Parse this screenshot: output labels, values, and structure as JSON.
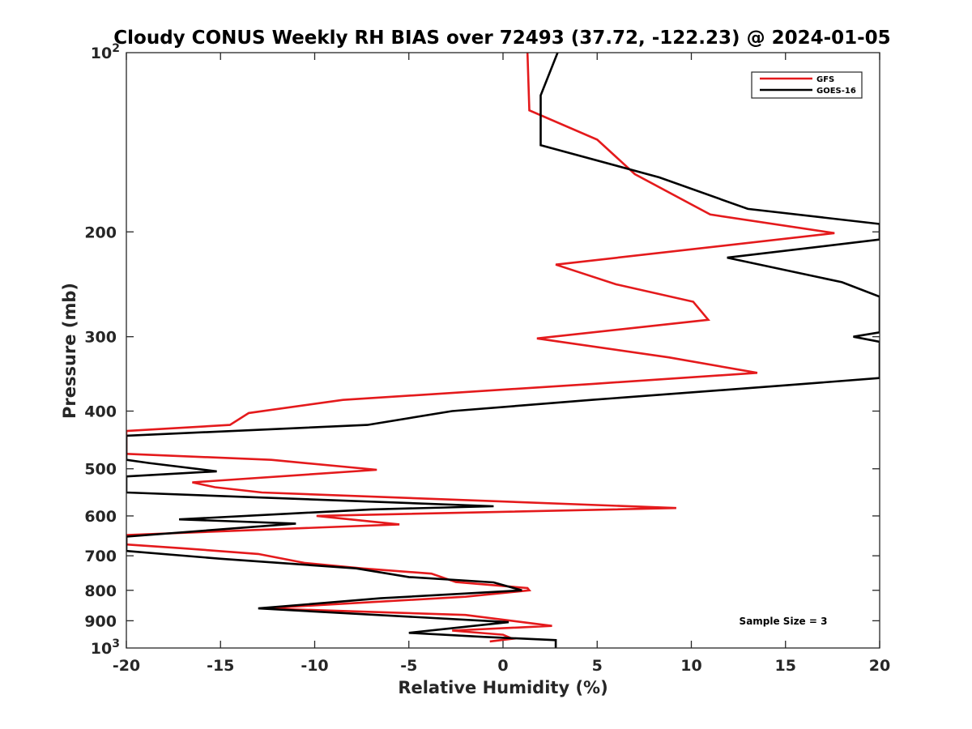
{
  "chart_data": {
    "type": "line",
    "title": "Cloudy CONUS Weekly RH BIAS over 72493 (37.72, -122.23) @ 2024-01-05",
    "xlabel": "Relative Humidity (%)",
    "ylabel": "Pressure (mb)",
    "xlim": [
      -20,
      20
    ],
    "ylim": [
      100,
      1000
    ],
    "y_scale": "log",
    "y_reversed": true,
    "grid": false,
    "legend_position": "top-right",
    "x_ticks": [
      "-20",
      "-15",
      "-10",
      "-5",
      "0",
      "5",
      "10",
      "15",
      "20"
    ],
    "x_tick_values": [
      -20,
      -15,
      -10,
      -5,
      0,
      5,
      10,
      15,
      20
    ],
    "y_ticks_plain": [
      {
        "value": 200,
        "label": "200"
      },
      {
        "value": 300,
        "label": "300"
      },
      {
        "value": 400,
        "label": "400"
      },
      {
        "value": 500,
        "label": "500"
      },
      {
        "value": 600,
        "label": "600"
      },
      {
        "value": 700,
        "label": "700"
      },
      {
        "value": 800,
        "label": "800"
      },
      {
        "value": 900,
        "label": "900"
      }
    ],
    "y_ticks_power": [
      {
        "value": 100,
        "base": "10",
        "exp": "2"
      },
      {
        "value": 1000,
        "base": "10",
        "exp": "3"
      }
    ],
    "annotation": "Sample Size = 3",
    "series": [
      {
        "name": "GFS",
        "color": "#e41a1c",
        "points": [
          [
            1.3,
            100
          ],
          [
            1.4,
            125
          ],
          [
            5.0,
            140
          ],
          [
            7.0,
            160
          ],
          [
            11.0,
            187
          ],
          [
            17.6,
            201
          ],
          [
            2.8,
            227
          ],
          [
            6.0,
            245
          ],
          [
            10.1,
            262
          ],
          [
            10.9,
            281
          ],
          [
            1.8,
            302
          ],
          [
            8.8,
            325
          ],
          [
            13.5,
            345
          ],
          [
            4.8,
            360
          ],
          [
            -8.5,
            383
          ],
          [
            -13.5,
            403
          ],
          [
            -14.5,
            422
          ],
          [
            -20.0,
            432
          ],
          [
            -20.0,
            472
          ],
          [
            -12.3,
            483
          ],
          [
            -6.7,
            502
          ],
          [
            -16.5,
            527
          ],
          [
            -15.3,
            537
          ],
          [
            -12.8,
            548
          ],
          [
            9.2,
            582
          ],
          [
            -9.9,
            600
          ],
          [
            -5.5,
            620
          ],
          [
            -20.0,
            646
          ],
          [
            -20.0,
            670
          ],
          [
            -17.0,
            680
          ],
          [
            -13.0,
            695
          ],
          [
            -10.5,
            720
          ],
          [
            -7.5,
            735
          ],
          [
            -3.8,
            750
          ],
          [
            -2.5,
            775
          ],
          [
            1.3,
            793
          ],
          [
            1.4,
            800
          ],
          [
            -2.0,
            820
          ],
          [
            -12.8,
            858
          ],
          [
            -2.0,
            880
          ],
          [
            2.6,
            918
          ],
          [
            -2.7,
            935
          ],
          [
            0.0,
            950
          ],
          [
            0.5,
            965
          ],
          [
            -0.7,
            975
          ]
        ]
      },
      {
        "name": "GOES-16",
        "color": "#000000",
        "points": [
          [
            2.9,
            100
          ],
          [
            2.0,
            118
          ],
          [
            2.0,
            125
          ],
          [
            2.0,
            143
          ],
          [
            8.3,
            162
          ],
          [
            13.0,
            183
          ],
          [
            20.0,
            194
          ],
          [
            20.0,
            206
          ],
          [
            11.9,
            221
          ],
          [
            18.0,
            243
          ],
          [
            20.0,
            257
          ],
          [
            20.0,
            295
          ],
          [
            18.6,
            300
          ],
          [
            20.0,
            306
          ],
          [
            20.0,
            352
          ],
          [
            15.0,
            362
          ],
          [
            4.7,
            383
          ],
          [
            -2.7,
            400
          ],
          [
            -7.2,
            422
          ],
          [
            -20.0,
            440
          ],
          [
            -20.0,
            483
          ],
          [
            -18.8,
            489
          ],
          [
            -15.2,
            505
          ],
          [
            -20.0,
            515
          ],
          [
            -20.0,
            548
          ],
          [
            -0.5,
            578
          ],
          [
            -7.0,
            585
          ],
          [
            -17.2,
            608
          ],
          [
            -11.0,
            618
          ],
          [
            -20.0,
            650
          ],
          [
            -20.0,
            687
          ],
          [
            -15.0,
            708
          ],
          [
            -7.8,
            735
          ],
          [
            -5.0,
            760
          ],
          [
            -0.5,
            776
          ],
          [
            1.0,
            800
          ],
          [
            -6.5,
            825
          ],
          [
            -13.0,
            858
          ],
          [
            0.3,
            905
          ],
          [
            -5.0,
            943
          ],
          [
            -1.0,
            958
          ],
          [
            2.8,
            970
          ],
          [
            2.8,
            1000
          ]
        ]
      }
    ]
  }
}
